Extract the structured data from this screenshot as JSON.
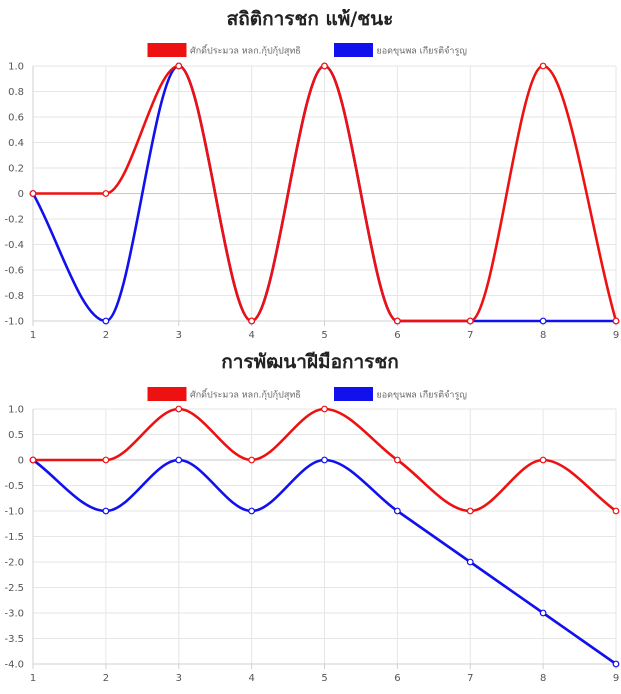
{
  "charts": [
    {
      "title": "สถิติการชก แพ้/ชนะ",
      "series_names": [
        "ศักดิ์ประมวล หลก.กุ้ปกุ้ปสุทธิ",
        "ยอดขุนพล เกียรติจำรูญ"
      ]
    },
    {
      "title": "การพัฒนาฝีมือการชก",
      "series_names": [
        "ศักดิ์ประมวล หลก.กุ้ปกุ้ปสุทธิ",
        "ยอดขุนพล เกียรติจำรูญ"
      ]
    }
  ],
  "chart_data": [
    {
      "type": "line",
      "title": "สถิติการชก แพ้/ชนะ",
      "categories": [
        "1",
        "2",
        "3",
        "4",
        "5",
        "6",
        "7",
        "8",
        "9"
      ],
      "series": [
        {
          "name": "ศักดิ์ประมวล หลก.กุ้ปกุ้ปสุทธิ",
          "color": "#ee1111",
          "values": [
            0,
            0,
            1,
            -1,
            1,
            -1,
            -1,
            1,
            -1
          ]
        },
        {
          "name": "ยอดขุนพล เกียรติจำรูญ",
          "color": "#1111ee",
          "values": [
            0,
            -1,
            1,
            -1,
            1,
            -1,
            -1,
            -1,
            -1
          ]
        }
      ],
      "ylim": [
        -1,
        1
      ],
      "yticks": [
        "1.0",
        "0.8",
        "0.6",
        "0.4",
        "0.2",
        "0",
        "-0.2",
        "-0.4",
        "-0.6",
        "-0.8",
        "-1.0"
      ],
      "ytick_values": [
        1,
        0.8,
        0.6,
        0.4,
        0.2,
        0,
        -0.2,
        -0.4,
        -0.6,
        -0.8,
        -1
      ],
      "grid": true,
      "legend_position": "top-center"
    },
    {
      "type": "line",
      "title": "การพัฒนาฝีมือการชก",
      "categories": [
        "1",
        "2",
        "3",
        "4",
        "5",
        "6",
        "7",
        "8",
        "9"
      ],
      "series": [
        {
          "name": "ศักดิ์ประมวล หลก.กุ้ปกุ้ปสุทธิ",
          "color": "#ee1111",
          "values": [
            0,
            0,
            1,
            0,
            1,
            0,
            -1,
            0,
            -1
          ]
        },
        {
          "name": "ยอดขุนพล เกียรติจำรูญ",
          "color": "#1111ee",
          "values": [
            0,
            -1,
            0,
            -1,
            0,
            -1,
            -2,
            -3,
            -4
          ]
        }
      ],
      "ylim": [
        -4,
        1
      ],
      "yticks": [
        "1.0",
        "0.5",
        "0",
        "-0.5",
        "-1.0",
        "-1.5",
        "-2.0",
        "-2.5",
        "-3.0",
        "-3.5",
        "-4.0"
      ],
      "ytick_values": [
        1,
        0.5,
        0,
        -0.5,
        -1,
        -1.5,
        -2,
        -2.5,
        -3,
        -3.5,
        -4
      ],
      "grid": true,
      "legend_position": "top-center"
    }
  ]
}
